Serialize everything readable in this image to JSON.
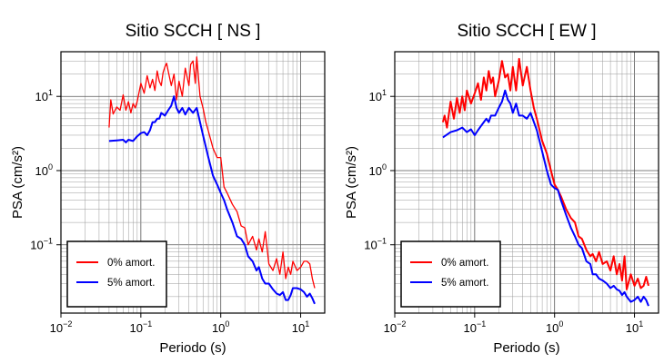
{
  "chart_data": [
    {
      "type": "line",
      "title": "Sitio SCCH [ NS ]",
      "xlabel": "Periodo (s)",
      "ylabel": "PSA (cm/s²)",
      "xscale": "log",
      "yscale": "log",
      "xlim": [
        0.01,
        20
      ],
      "ylim": [
        0.012,
        40
      ],
      "grid": true,
      "x_ticks": [
        {
          "value": 0.01,
          "base": "10",
          "exp": "−2"
        },
        {
          "value": 0.1,
          "base": "10",
          "exp": "−1"
        },
        {
          "value": 1,
          "base": "10",
          "exp": "0"
        },
        {
          "value": 10,
          "base": "10",
          "exp": "1"
        }
      ],
      "y_ticks": [
        {
          "value": 0.1,
          "base": "10",
          "exp": "−1"
        },
        {
          "value": 1,
          "base": "10",
          "exp": "0"
        },
        {
          "value": 10,
          "base": "10",
          "exp": "1"
        }
      ],
      "legend_position": "bottom-left",
      "series": [
        {
          "name": "0% amort.",
          "color": "#ff0000",
          "width": 1.3,
          "x": [
            0.04,
            0.042,
            0.045,
            0.05,
            0.055,
            0.06,
            0.065,
            0.07,
            0.075,
            0.08,
            0.085,
            0.09,
            0.1,
            0.11,
            0.12,
            0.13,
            0.14,
            0.15,
            0.16,
            0.17,
            0.18,
            0.19,
            0.2,
            0.21,
            0.22,
            0.24,
            0.26,
            0.28,
            0.3,
            0.33,
            0.36,
            0.4,
            0.42,
            0.45,
            0.48,
            0.5,
            0.55,
            0.6,
            0.65,
            0.7,
            0.8,
            0.9,
            1.0,
            1.1,
            1.2,
            1.4,
            1.6,
            1.8,
            2.0,
            2.2,
            2.5,
            2.8,
            3.0,
            3.3,
            3.6,
            4.0,
            4.5,
            5.0,
            5.5,
            6.0,
            6.5,
            7.0,
            7.5,
            8.0,
            9.0,
            10,
            11,
            12,
            13,
            14,
            15
          ],
          "y": [
            3.8,
            9,
            5.8,
            7.2,
            6.5,
            10.5,
            6.5,
            8.5,
            6,
            8,
            7,
            8.5,
            15,
            11,
            19,
            13,
            17,
            12,
            22,
            16,
            14,
            21,
            25,
            28,
            22,
            14,
            20,
            9,
            16,
            10,
            24,
            14,
            27,
            30,
            15,
            34,
            10,
            7,
            4.5,
            3.4,
            2,
            1.5,
            1.5,
            0.6,
            0.5,
            0.35,
            0.28,
            0.18,
            0.17,
            0.1,
            0.13,
            0.085,
            0.12,
            0.08,
            0.15,
            0.055,
            0.045,
            0.065,
            0.04,
            0.08,
            0.035,
            0.05,
            0.04,
            0.06,
            0.045,
            0.05,
            0.06,
            0.06,
            0.055,
            0.035,
            0.026
          ]
        },
        {
          "name": "5% amort.",
          "color": "#0000ff",
          "width": 2,
          "x": [
            0.04,
            0.05,
            0.06,
            0.065,
            0.07,
            0.08,
            0.09,
            0.1,
            0.11,
            0.12,
            0.13,
            0.14,
            0.15,
            0.16,
            0.17,
            0.18,
            0.2,
            0.22,
            0.24,
            0.26,
            0.28,
            0.3,
            0.33,
            0.36,
            0.4,
            0.45,
            0.5,
            0.6,
            0.7,
            0.8,
            0.9,
            1.0,
            1.1,
            1.2,
            1.4,
            1.6,
            1.8,
            2.0,
            2.2,
            2.5,
            2.8,
            3.0,
            3.3,
            3.6,
            4.0,
            4.5,
            5.0,
            5.5,
            6.0,
            6.5,
            7.0,
            7.5,
            8.0,
            9.0,
            10,
            11,
            12,
            13,
            14,
            15
          ],
          "y": [
            2.5,
            2.55,
            2.6,
            2.4,
            2.6,
            2.5,
            2.9,
            3.2,
            3.3,
            3,
            3.5,
            4.5,
            4.5,
            5,
            5,
            6,
            5.5,
            6.5,
            7.5,
            10,
            7,
            6,
            7,
            5.7,
            7,
            6,
            7,
            3,
            1.5,
            0.85,
            0.65,
            0.5,
            0.4,
            0.3,
            0.2,
            0.13,
            0.12,
            0.1,
            0.07,
            0.06,
            0.045,
            0.05,
            0.035,
            0.03,
            0.03,
            0.025,
            0.022,
            0.021,
            0.023,
            0.018,
            0.018,
            0.021,
            0.026,
            0.026,
            0.025,
            0.023,
            0.02,
            0.022,
            0.019,
            0.016
          ]
        }
      ]
    },
    {
      "type": "line",
      "title": "Sitio SCCH [ EW ]",
      "xlabel": "Periodo (s)",
      "ylabel": "PSA (cm/s²)",
      "xscale": "log",
      "yscale": "log",
      "xlim": [
        0.01,
        20
      ],
      "ylim": [
        0.012,
        40
      ],
      "grid": true,
      "x_ticks": [
        {
          "value": 0.01,
          "base": "10",
          "exp": "−2"
        },
        {
          "value": 0.1,
          "base": "10",
          "exp": "−1"
        },
        {
          "value": 1,
          "base": "10",
          "exp": "0"
        },
        {
          "value": 10,
          "base": "10",
          "exp": "1"
        }
      ],
      "y_ticks": [
        {
          "value": 0.1,
          "base": "10",
          "exp": "−1"
        },
        {
          "value": 1,
          "base": "10",
          "exp": "0"
        },
        {
          "value": 10,
          "base": "10",
          "exp": "1"
        }
      ],
      "legend_position": "bottom-left",
      "series": [
        {
          "name": "0% amort.",
          "color": "#ff0000",
          "width": 2,
          "x": [
            0.04,
            0.042,
            0.045,
            0.05,
            0.055,
            0.06,
            0.065,
            0.07,
            0.075,
            0.08,
            0.09,
            0.1,
            0.11,
            0.12,
            0.13,
            0.14,
            0.15,
            0.16,
            0.17,
            0.18,
            0.2,
            0.22,
            0.24,
            0.26,
            0.28,
            0.3,
            0.33,
            0.36,
            0.4,
            0.45,
            0.5,
            0.55,
            0.6,
            0.7,
            0.8,
            0.9,
            1.0,
            1.1,
            1.2,
            1.4,
            1.6,
            1.8,
            2.0,
            2.2,
            2.5,
            2.8,
            3.0,
            3.3,
            3.6,
            4.0,
            4.5,
            5.0,
            5.5,
            6.0,
            6.5,
            7.0,
            7.5,
            8.0,
            9.0,
            10,
            11,
            12,
            13,
            14,
            15
          ],
          "y": [
            4.5,
            5.5,
            3.8,
            8.5,
            5,
            9.5,
            6,
            10,
            6.5,
            12,
            8,
            11,
            15,
            9,
            18,
            12,
            22,
            15,
            18,
            10,
            16,
            30,
            18,
            20,
            12,
            25,
            12,
            32,
            14,
            25,
            12,
            7,
            5,
            2.5,
            1.7,
            1,
            0.65,
            0.55,
            0.45,
            0.3,
            0.23,
            0.2,
            0.13,
            0.12,
            0.085,
            0.07,
            0.075,
            0.06,
            0.08,
            0.055,
            0.06,
            0.045,
            0.07,
            0.04,
            0.055,
            0.033,
            0.07,
            0.025,
            0.04,
            0.028,
            0.035,
            0.026,
            0.028,
            0.037,
            0.028
          ]
        },
        {
          "name": "5% amort.",
          "color": "#0000ff",
          "width": 2,
          "x": [
            0.04,
            0.05,
            0.06,
            0.07,
            0.08,
            0.09,
            0.1,
            0.11,
            0.12,
            0.13,
            0.14,
            0.15,
            0.16,
            0.18,
            0.2,
            0.22,
            0.24,
            0.26,
            0.28,
            0.3,
            0.33,
            0.36,
            0.4,
            0.45,
            0.5,
            0.6,
            0.7,
            0.8,
            0.9,
            1.0,
            1.1,
            1.2,
            1.4,
            1.6,
            1.8,
            2.0,
            2.2,
            2.5,
            2.8,
            3.0,
            3.3,
            3.6,
            4.0,
            4.5,
            5.0,
            5.5,
            6.0,
            6.5,
            7.0,
            7.5,
            8.0,
            9.0,
            10,
            11,
            12,
            13,
            14,
            15
          ],
          "y": [
            2.8,
            3.3,
            3.5,
            3.8,
            3.3,
            3.6,
            3,
            3.5,
            4,
            4.5,
            5,
            4.5,
            5.5,
            5.5,
            7,
            8.5,
            12,
            9,
            8,
            6,
            8,
            5.5,
            5.5,
            5,
            6,
            3.5,
            1.8,
            1,
            0.65,
            0.58,
            0.55,
            0.4,
            0.25,
            0.17,
            0.13,
            0.1,
            0.09,
            0.06,
            0.055,
            0.04,
            0.04,
            0.035,
            0.033,
            0.03,
            0.026,
            0.028,
            0.025,
            0.024,
            0.021,
            0.023,
            0.02,
            0.017,
            0.018,
            0.02,
            0.017,
            0.02,
            0.018,
            0.015
          ]
        }
      ]
    }
  ]
}
